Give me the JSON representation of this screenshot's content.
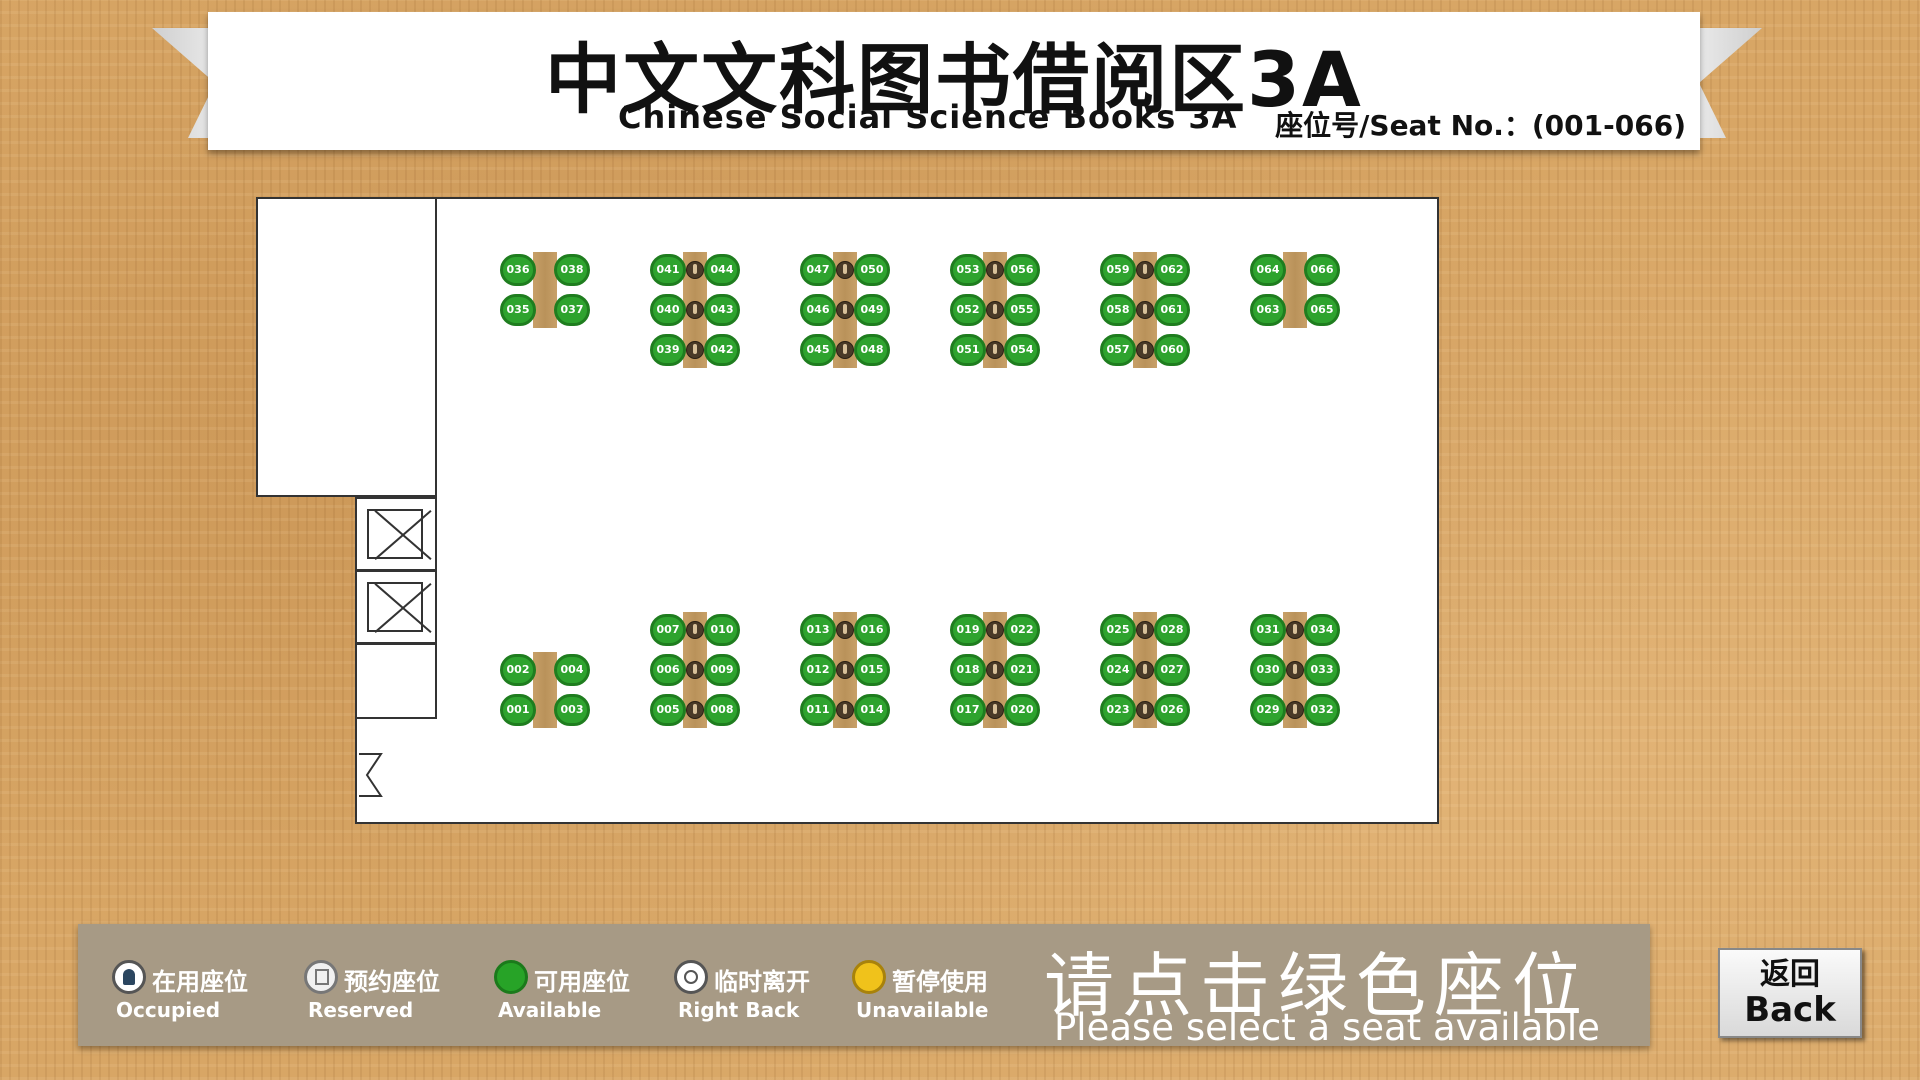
{
  "header": {
    "title_cn": "中文文科图书借阅区3A",
    "title_en": "Chinese Social Science Books 3A",
    "seat_range": "座位号/Seat No.：(001-066)"
  },
  "seat_groups": [
    {
      "seats": [
        "036",
        "038",
        "035",
        "037"
      ],
      "rows": 2,
      "occupied": []
    },
    {
      "seats": [
        "041",
        "044",
        "040",
        "043",
        "039",
        "042"
      ],
      "rows": 3,
      "occupied": [
        0,
        1,
        2
      ]
    },
    {
      "seats": [
        "047",
        "050",
        "046",
        "049",
        "045",
        "048"
      ],
      "rows": 3,
      "occupied": [
        0,
        1,
        2
      ]
    },
    {
      "seats": [
        "053",
        "056",
        "052",
        "055",
        "051",
        "054"
      ],
      "rows": 3,
      "occupied": [
        0,
        1,
        2
      ]
    },
    {
      "seats": [
        "059",
        "062",
        "058",
        "061",
        "057",
        "060"
      ],
      "rows": 3,
      "occupied": [
        0,
        1,
        2
      ]
    },
    {
      "seats": [
        "064",
        "066",
        "063",
        "065"
      ],
      "rows": 2,
      "occupied": []
    },
    {
      "seats": [
        "002",
        "004",
        "001",
        "003"
      ],
      "rows": 2,
      "occupied": []
    },
    {
      "seats": [
        "007",
        "010",
        "006",
        "009",
        "005",
        "008"
      ],
      "rows": 3,
      "occupied": [
        0,
        1,
        2
      ]
    },
    {
      "seats": [
        "013",
        "016",
        "012",
        "015",
        "011",
        "014"
      ],
      "rows": 3,
      "occupied": [
        0,
        1,
        2
      ]
    },
    {
      "seats": [
        "019",
        "022",
        "018",
        "021",
        "017",
        "020"
      ],
      "rows": 3,
      "occupied": [
        0,
        1,
        2
      ]
    },
    {
      "seats": [
        "025",
        "028",
        "024",
        "027",
        "023",
        "026"
      ],
      "rows": 3,
      "occupied": [
        0,
        1,
        2
      ]
    },
    {
      "seats": [
        "031",
        "034",
        "030",
        "033",
        "029",
        "032"
      ],
      "rows": 3,
      "occupied": [
        0,
        1,
        2
      ]
    }
  ],
  "legend": [
    {
      "cn": "在用座位",
      "en": "Occupied",
      "icon": "occupied-icon"
    },
    {
      "cn": "预约座位",
      "en": "Reserved",
      "icon": "reserved-icon"
    },
    {
      "cn": "可用座位",
      "en": "Available",
      "icon": "available-icon"
    },
    {
      "cn": "临时离开",
      "en": "Right Back",
      "icon": "right-back-icon"
    },
    {
      "cn": "暂停使用",
      "en": "Unavailable",
      "icon": "unavailable-icon"
    }
  ],
  "prompt": {
    "cn": "请点击绿色座位",
    "en": "Please select a seat available"
  },
  "back_button": {
    "cn": "返回",
    "en": "Back"
  },
  "colors": {
    "seat_available": "#2ea32e",
    "legend_bar": "#a79a85",
    "unavailable": "#f0c21b"
  }
}
